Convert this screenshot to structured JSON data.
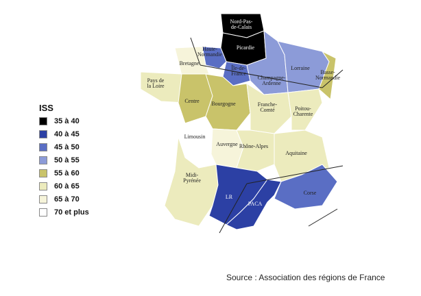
{
  "legend": {
    "title": "ISS",
    "items": [
      {
        "label": "35 à 40",
        "color": "#000000"
      },
      {
        "label": "40 à 45",
        "color": "#2c40a4"
      },
      {
        "label": "45 à 50",
        "color": "#5a6ec4"
      },
      {
        "label": "50 à 55",
        "color": "#8c9bd8"
      },
      {
        "label": "55 à 60",
        "color": "#c9c36a"
      },
      {
        "label": "60 à 65",
        "color": "#ecebbd"
      },
      {
        "label": "65 à 70",
        "color": "#f6f4da"
      },
      {
        "label": "70 et plus",
        "color": "#ffffff"
      }
    ]
  },
  "regions": [
    {
      "name": "Nord-Pas-\nde-Calais",
      "color": "#000000"
    },
    {
      "name": "Picardie",
      "color": "#000000"
    },
    {
      "name": "Haute-\nNormandie",
      "color": "#5a6ec4"
    },
    {
      "name": "Île-de-\nFrance",
      "color": "#5a6ec4"
    },
    {
      "name": "Champagne-\nArdenne",
      "color": "#8c9bd8"
    },
    {
      "name": "Lorraine",
      "color": "#8c9bd8"
    },
    {
      "name": "Basse-\nNormandie",
      "color": "#c9c36a"
    },
    {
      "name": "Bretagne",
      "color": "#f6f4da"
    },
    {
      "name": "Pays de\nla Loire",
      "color": "#ecebbd"
    },
    {
      "name": "Centre",
      "color": "#c9c36a"
    },
    {
      "name": "Bourgogne",
      "color": "#c9c36a"
    },
    {
      "name": "Franche-\nComté",
      "color": "#ecebbd"
    },
    {
      "name": "Poitou-\nCharente",
      "color": "#ecebbd"
    },
    {
      "name": "Limousin",
      "color": "#ffffff"
    },
    {
      "name": "Auvergne",
      "color": "#f6f4da"
    },
    {
      "name": "Rhône-Alpes",
      "color": "#ecebbd"
    },
    {
      "name": "Aquitaine",
      "color": "#ecebbd"
    },
    {
      "name": "Midi-\nPyrénée",
      "color": "#ecebbd"
    },
    {
      "name": "LR",
      "color": "#2c40a4"
    },
    {
      "name": "PACA",
      "color": "#2c40a4"
    },
    {
      "name": "Corse",
      "color": "#5a6ec4"
    }
  ],
  "source": "Source : Association des régions de France"
}
